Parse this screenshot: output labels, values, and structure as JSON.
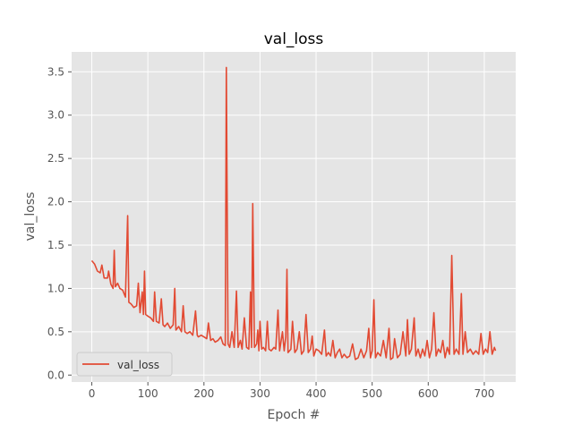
{
  "chart_data": {
    "type": "line",
    "title": "val_loss",
    "xlabel": "Epoch #",
    "ylabel": "val_loss",
    "xlim": [
      -36,
      756
    ],
    "ylim": [
      -0.08,
      3.73
    ],
    "x_ticks": [
      0,
      100,
      200,
      300,
      400,
      500,
      600,
      700
    ],
    "y_ticks": [
      0.0,
      0.5,
      1.0,
      1.5,
      2.0,
      2.5,
      3.0,
      3.5
    ],
    "x_tick_labels": [
      "0",
      "100",
      "200",
      "300",
      "400",
      "500",
      "600",
      "700"
    ],
    "y_tick_labels": [
      "0.0",
      "0.5",
      "1.0",
      "1.5",
      "2.0",
      "2.5",
      "3.0",
      "3.5"
    ],
    "grid": true,
    "legend_position": "lower-left",
    "colors": {
      "line": "#e24a33",
      "plot_background": "#e5e5e5",
      "grid": "#ffffff",
      "text": "#555555",
      "title": "#000000"
    },
    "series": [
      {
        "name": "val_loss",
        "points": [
          [
            0,
            1.32
          ],
          [
            5,
            1.28
          ],
          [
            10,
            1.2
          ],
          [
            15,
            1.18
          ],
          [
            18,
            1.27
          ],
          [
            22,
            1.12
          ],
          [
            28,
            1.12
          ],
          [
            30,
            1.2
          ],
          [
            34,
            1.05
          ],
          [
            38,
            1.0
          ],
          [
            40,
            1.44
          ],
          [
            42,
            1.02
          ],
          [
            46,
            1.06
          ],
          [
            50,
            1.0
          ],
          [
            55,
            0.98
          ],
          [
            60,
            0.9
          ],
          [
            64,
            1.84
          ],
          [
            66,
            0.84
          ],
          [
            70,
            0.82
          ],
          [
            75,
            0.78
          ],
          [
            80,
            0.8
          ],
          [
            83,
            1.06
          ],
          [
            86,
            0.72
          ],
          [
            90,
            0.96
          ],
          [
            92,
            0.7
          ],
          [
            94,
            1.2
          ],
          [
            96,
            0.7
          ],
          [
            100,
            0.68
          ],
          [
            105,
            0.66
          ],
          [
            110,
            0.62
          ],
          [
            112,
            0.96
          ],
          [
            115,
            0.62
          ],
          [
            120,
            0.6
          ],
          [
            124,
            0.88
          ],
          [
            127,
            0.58
          ],
          [
            130,
            0.56
          ],
          [
            135,
            0.6
          ],
          [
            140,
            0.54
          ],
          [
            145,
            0.58
          ],
          [
            148,
            1.0
          ],
          [
            150,
            0.52
          ],
          [
            155,
            0.56
          ],
          [
            160,
            0.5
          ],
          [
            163,
            0.8
          ],
          [
            166,
            0.5
          ],
          [
            170,
            0.48
          ],
          [
            175,
            0.5
          ],
          [
            180,
            0.46
          ],
          [
            185,
            0.74
          ],
          [
            188,
            0.46
          ],
          [
            190,
            0.44
          ],
          [
            195,
            0.46
          ],
          [
            200,
            0.44
          ],
          [
            205,
            0.42
          ],
          [
            208,
            0.6
          ],
          [
            212,
            0.4
          ],
          [
            216,
            0.42
          ],
          [
            220,
            0.38
          ],
          [
            225,
            0.4
          ],
          [
            230,
            0.44
          ],
          [
            234,
            0.36
          ],
          [
            238,
            0.34
          ],
          [
            240,
            3.55
          ],
          [
            243,
            0.36
          ],
          [
            246,
            0.32
          ],
          [
            250,
            0.5
          ],
          [
            254,
            0.32
          ],
          [
            258,
            0.97
          ],
          [
            261,
            0.32
          ],
          [
            265,
            0.4
          ],
          [
            268,
            0.3
          ],
          [
            272,
            0.66
          ],
          [
            276,
            0.32
          ],
          [
            280,
            0.3
          ],
          [
            283,
            0.96
          ],
          [
            285,
            0.32
          ],
          [
            287,
            1.98
          ],
          [
            290,
            0.32
          ],
          [
            294,
            0.36
          ],
          [
            296,
            0.52
          ],
          [
            298,
            0.28
          ],
          [
            300,
            0.62
          ],
          [
            303,
            0.3
          ],
          [
            306,
            0.32
          ],
          [
            310,
            0.28
          ],
          [
            313,
            0.62
          ],
          [
            316,
            0.3
          ],
          [
            320,
            0.28
          ],
          [
            325,
            0.32
          ],
          [
            328,
            0.3
          ],
          [
            332,
            0.75
          ],
          [
            335,
            0.28
          ],
          [
            340,
            0.5
          ],
          [
            343,
            0.28
          ],
          [
            346,
            0.44
          ],
          [
            348,
            1.22
          ],
          [
            350,
            0.26
          ],
          [
            355,
            0.3
          ],
          [
            358,
            0.62
          ],
          [
            362,
            0.26
          ],
          [
            366,
            0.3
          ],
          [
            370,
            0.5
          ],
          [
            374,
            0.24
          ],
          [
            378,
            0.28
          ],
          [
            382,
            0.7
          ],
          [
            386,
            0.26
          ],
          [
            390,
            0.3
          ],
          [
            393,
            0.45
          ],
          [
            396,
            0.22
          ],
          [
            400,
            0.3
          ],
          [
            405,
            0.28
          ],
          [
            410,
            0.24
          ],
          [
            415,
            0.52
          ],
          [
            418,
            0.22
          ],
          [
            422,
            0.26
          ],
          [
            426,
            0.22
          ],
          [
            430,
            0.4
          ],
          [
            434,
            0.2
          ],
          [
            438,
            0.26
          ],
          [
            442,
            0.3
          ],
          [
            446,
            0.2
          ],
          [
            450,
            0.24
          ],
          [
            455,
            0.2
          ],
          [
            460,
            0.22
          ],
          [
            465,
            0.36
          ],
          [
            470,
            0.18
          ],
          [
            475,
            0.2
          ],
          [
            480,
            0.3
          ],
          [
            485,
            0.2
          ],
          [
            490,
            0.28
          ],
          [
            494,
            0.54
          ],
          [
            497,
            0.2
          ],
          [
            500,
            0.28
          ],
          [
            503,
            0.87
          ],
          [
            506,
            0.2
          ],
          [
            510,
            0.26
          ],
          [
            515,
            0.22
          ],
          [
            520,
            0.4
          ],
          [
            525,
            0.2
          ],
          [
            530,
            0.54
          ],
          [
            533,
            0.18
          ],
          [
            537,
            0.2
          ],
          [
            540,
            0.42
          ],
          [
            545,
            0.2
          ],
          [
            550,
            0.24
          ],
          [
            555,
            0.5
          ],
          [
            560,
            0.22
          ],
          [
            563,
            0.64
          ],
          [
            566,
            0.24
          ],
          [
            570,
            0.3
          ],
          [
            575,
            0.66
          ],
          [
            578,
            0.22
          ],
          [
            582,
            0.3
          ],
          [
            586,
            0.2
          ],
          [
            590,
            0.3
          ],
          [
            594,
            0.22
          ],
          [
            598,
            0.4
          ],
          [
            602,
            0.2
          ],
          [
            606,
            0.3
          ],
          [
            610,
            0.72
          ],
          [
            614,
            0.22
          ],
          [
            618,
            0.3
          ],
          [
            622,
            0.26
          ],
          [
            626,
            0.4
          ],
          [
            630,
            0.2
          ],
          [
            634,
            0.32
          ],
          [
            638,
            0.24
          ],
          [
            642,
            1.38
          ],
          [
            646,
            0.24
          ],
          [
            650,
            0.3
          ],
          [
            655,
            0.24
          ],
          [
            659,
            0.94
          ],
          [
            662,
            0.24
          ],
          [
            666,
            0.5
          ],
          [
            670,
            0.26
          ],
          [
            675,
            0.3
          ],
          [
            680,
            0.24
          ],
          [
            685,
            0.28
          ],
          [
            690,
            0.24
          ],
          [
            694,
            0.48
          ],
          [
            698,
            0.24
          ],
          [
            702,
            0.3
          ],
          [
            706,
            0.26
          ],
          [
            710,
            0.5
          ],
          [
            714,
            0.24
          ],
          [
            718,
            0.32
          ],
          [
            720,
            0.28
          ]
        ]
      }
    ]
  }
}
